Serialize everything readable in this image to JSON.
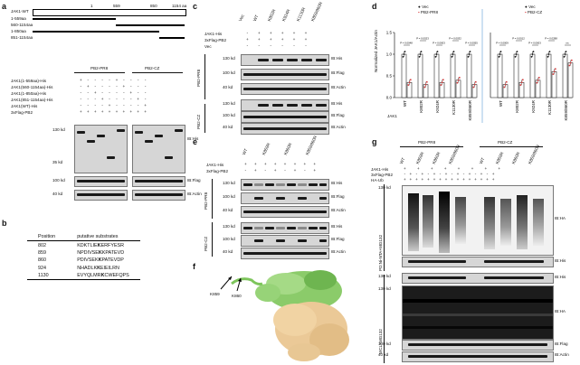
{
  "panel_labels": [
    "a",
    "b",
    "c",
    "d",
    "e",
    "f",
    "g"
  ],
  "panel_a": {
    "domains": [
      {
        "label": "JAK1-WT"
      },
      {
        "label": "1-559aa"
      },
      {
        "label": "560-1154aa"
      },
      {
        "label": "1-850aa"
      },
      {
        "label": "851-1154aa"
      }
    ],
    "pos": [
      "1",
      "559",
      "850",
      "1154 aa"
    ],
    "groups": [
      "PB2-PR8",
      "PB2-CZ"
    ],
    "row_labels": [
      "JAK1(1-559aa)-His",
      "JAK1(560-1154aa)-His",
      "JAK1(1-850aa)-His",
      "JAK1(851-1154aa)-His",
      "JAK1(WT)-His",
      "3xFlag-PB2"
    ],
    "row_signs": [
      "+ - - - - + - - - -",
      "- + - - - - + - - -",
      "- - + - - - - + - -",
      "- - - + - - - - + -",
      "- - - - + - - - - +",
      "+ + + + + + + + + +"
    ],
    "mw": [
      "130 kd",
      "35 kd",
      "100 kd",
      "40 kd"
    ],
    "ib": [
      "IB:His",
      "IB:Flag",
      "IB:Actin"
    ]
  },
  "panel_b": {
    "headers": [
      "Position",
      "putative substrates"
    ],
    "rows": [
      {
        "pos": "802",
        "pre": "KDKTLIE",
        "k": "K",
        "post": "ERFYESR"
      },
      {
        "pos": "859",
        "pre": "NPDIVSE",
        "k": "K",
        "post": "KPATEVD"
      },
      {
        "pos": "860",
        "pre": "PDIVSEK",
        "k": "K",
        "post": "PATEVDP"
      },
      {
        "pos": "924",
        "pre": "NHADLK",
        "k": "K",
        "post": "EIEILRN"
      },
      {
        "pos": "1130",
        "pre": "EVYQLMR",
        "k": "K",
        "post": "CWEFQPS"
      }
    ]
  },
  "panel_c": {
    "lanes": [
      "Vec",
      "WT",
      "K802R",
      "K924R",
      "K1130R",
      "K859/860R"
    ],
    "row_labels": [
      "JAK1-His",
      "3xFlag-PB2",
      "Vec"
    ],
    "row_signs": [
      "- + + + + +",
      "+ + + + + +",
      "- - - - - -"
    ],
    "groups": [
      "PB2-PR8",
      "PB2-CZ"
    ],
    "mw": [
      "130 kd",
      "100 kd",
      "40 kd",
      "130 kd",
      "100 kd",
      "40 kd"
    ],
    "ib": [
      "IB:His",
      "IB:Flag",
      "IB:Actin",
      "IB:His",
      "IB:Flag",
      "IB:Actin"
    ]
  },
  "panel_d": {
    "ylabel": "Normalized JAK1/Actin",
    "xlabel": "JAK1",
    "legend_left": [
      "Vec",
      "PB2-PR8"
    ],
    "legend_right": [
      "Vec",
      "PB2-CZ"
    ],
    "yticks": [
      "0.0",
      "0.5",
      "1.0",
      "1.5"
    ],
    "categories": [
      "WT",
      "K802R",
      "K924R",
      "K1130R",
      "K859/860R"
    ],
    "pvals_left": [
      "P = 0.0048",
      "P = 0.0023",
      "P = 0.0003",
      "P = 0.0032",
      "P = 0.0055"
    ],
    "pvals_right": [
      "P = 0.0009",
      "P = 0.0012",
      "P = 0.0003",
      "P = 0.0288",
      "ns"
    ]
  },
  "chart_data": [
    {
      "type": "bar",
      "categories": [
        "WT",
        "K802R",
        "K924R",
        "K1130R",
        "K859/860R"
      ],
      "series": [
        {
          "name": "Vec",
          "values": [
            1.0,
            1.0,
            1.0,
            1.0,
            1.0
          ]
        },
        {
          "name": "PB2-PR8",
          "values": [
            0.35,
            0.3,
            0.35,
            0.4,
            0.3
          ]
        }
      ],
      "ylabel": "Normalized JAK1/Actin",
      "xlabel": "JAK1",
      "ylim": [
        0,
        1.5
      ]
    },
    {
      "type": "bar",
      "categories": [
        "WT",
        "K802R",
        "K924R",
        "K1130R",
        "K859/860R"
      ],
      "series": [
        {
          "name": "Vec",
          "values": [
            1.0,
            1.0,
            1.0,
            1.0,
            1.0
          ]
        },
        {
          "name": "PB2-CZ",
          "values": [
            0.3,
            0.35,
            0.4,
            0.6,
            0.8
          ]
        }
      ],
      "ylim": [
        0,
        1.5
      ]
    }
  ],
  "panel_e": {
    "lanes": [
      "WT",
      "K859R",
      "K860R",
      "K859/860R"
    ],
    "row_labels": [
      "JAK1-His",
      "3xFlag-PB2"
    ],
    "row_signs": [
      "+ + + + + + + +",
      "- + - + - + - +"
    ],
    "groups": [
      "PB2-PR8",
      "PB2-CZ"
    ],
    "mw": [
      "130 kd",
      "100 kd",
      "40 kd",
      "130 kd",
      "100 kd",
      "40 kd"
    ],
    "ib": [
      "IB:His",
      "IB:Flag",
      "IB:Actin",
      "IB:His",
      "IB:Flag",
      "IB:Actin"
    ]
  },
  "panel_f": {
    "labels": [
      "K859",
      "K860"
    ]
  },
  "panel_g": {
    "groups": [
      "PB2-PR8",
      "PB2-CZ"
    ],
    "lanes": [
      "WT",
      "K859R",
      "K860R",
      "K859/860R",
      "WT",
      "K859R",
      "K860R",
      "K859/860R"
    ],
    "row_labels": [
      "JAK1-His",
      "3xFlag-PB2",
      "HA-Ub"
    ],
    "row_signs": [
      "+ + + + + + + +",
      "- + - + - + - + - + - + - + - +",
      "+ + + + + + + + + + + + + + + +"
    ],
    "side_groups": [
      "PD:Ni-NTA+MG132",
      "WCL+MG132"
    ],
    "mw": [
      "130 kd",
      "130 kd",
      "130 kd",
      "100 kd",
      "40 kd"
    ],
    "ib": [
      "IB:HA",
      "IB:His",
      "IB:His",
      "IB:HA",
      "IB:Flag",
      "IB:Actin"
    ]
  },
  "colors": {
    "vec": "#111111",
    "pr8": "#d73a3a",
    "cz": "#d73a3a",
    "bar_fill": "#ffffff"
  }
}
